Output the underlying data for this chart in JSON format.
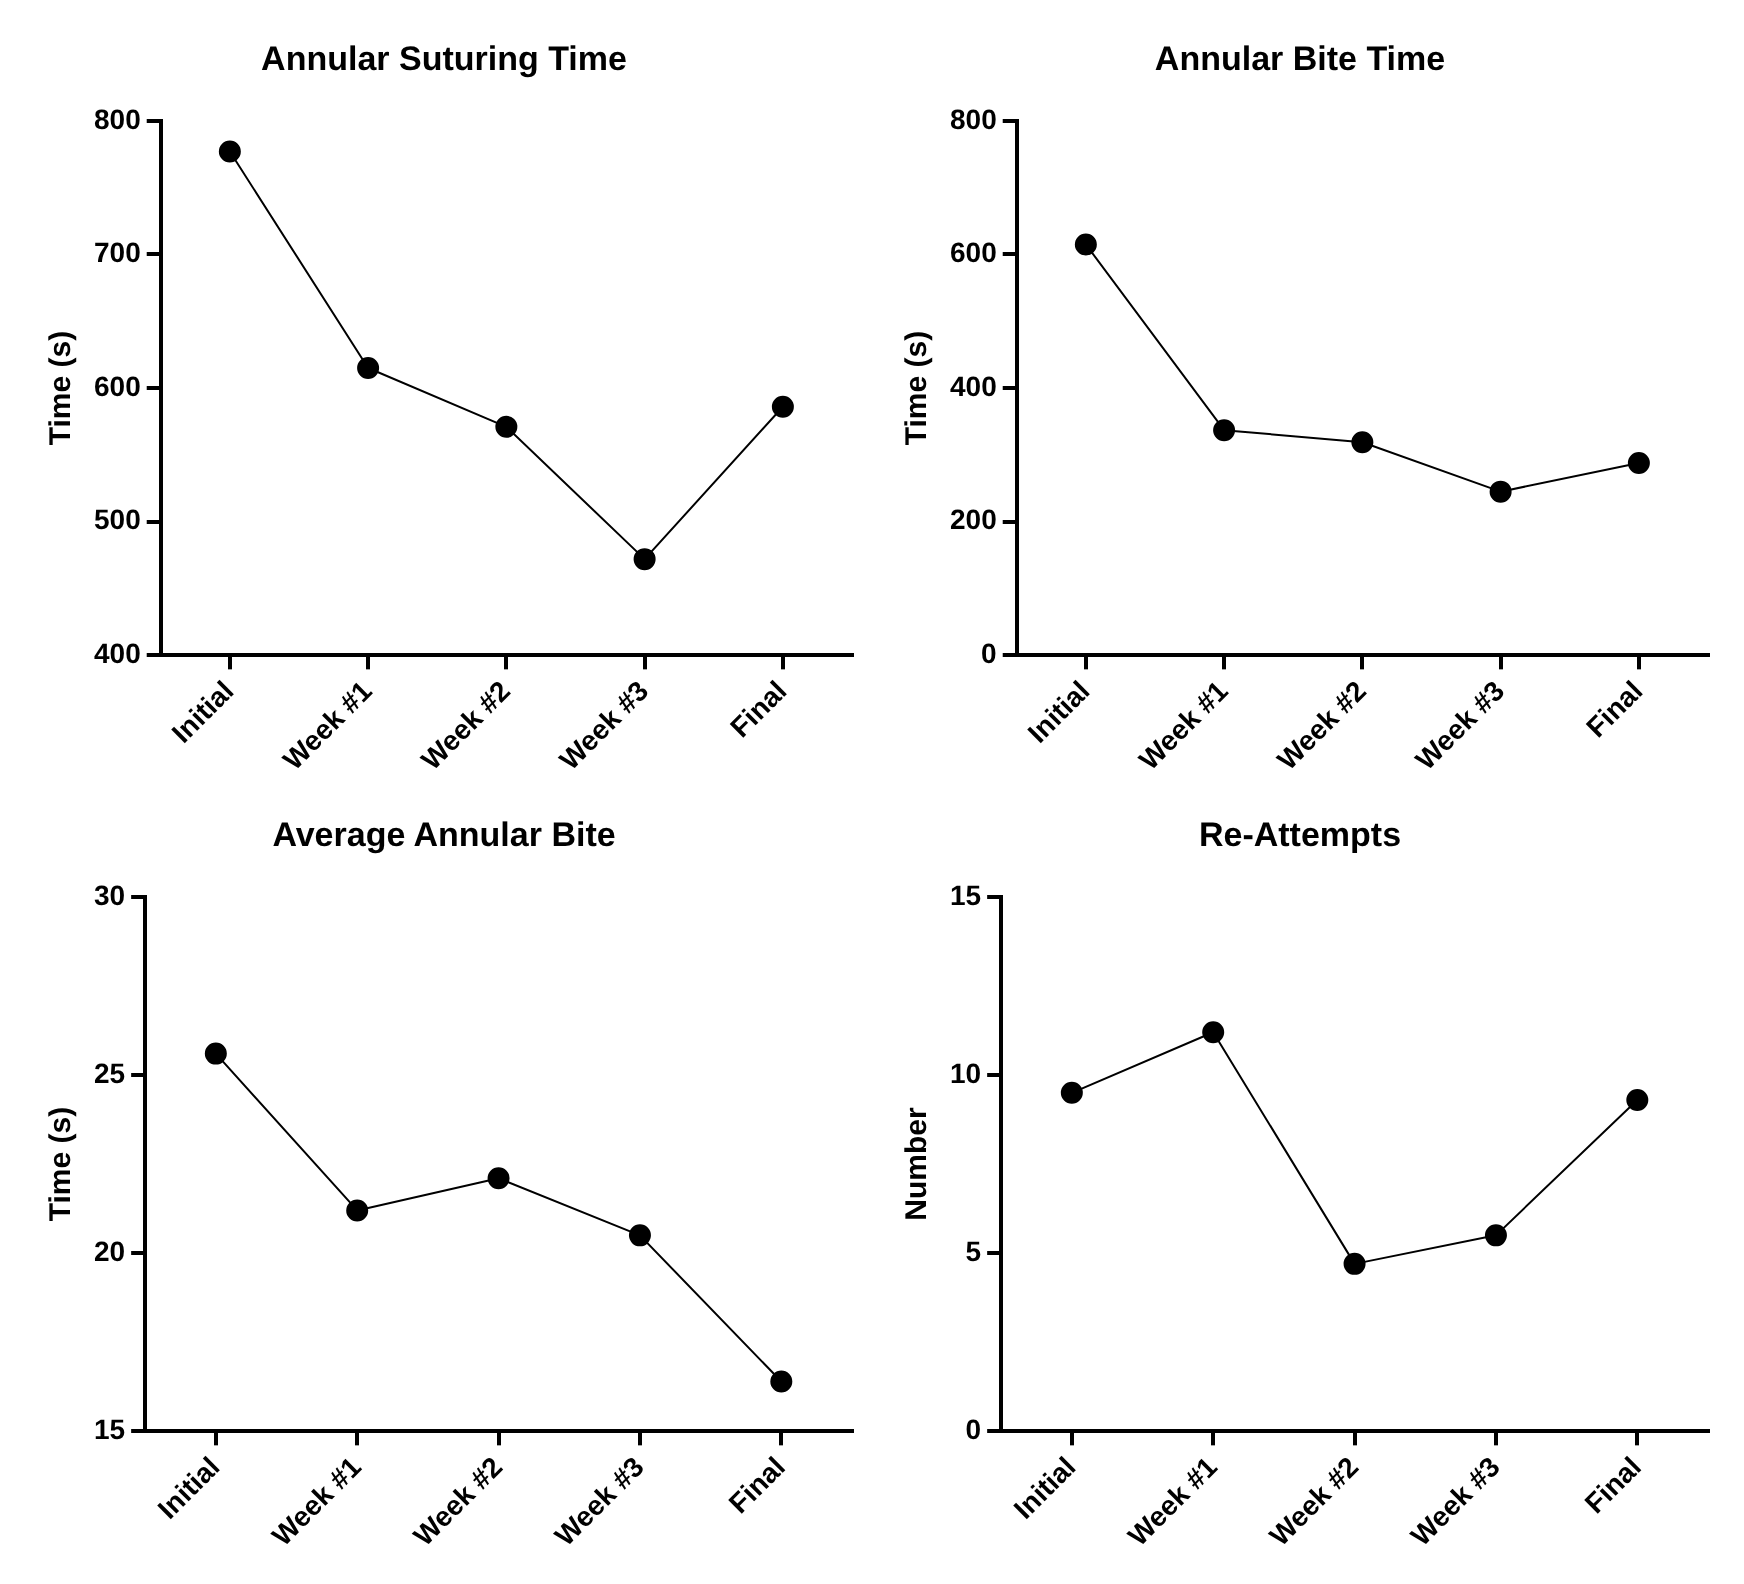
{
  "chart_data": [
    {
      "type": "line",
      "title": "Annular Suturing Time",
      "ylabel": "Time (s)",
      "categories": [
        "Initial",
        "Week #1",
        "Week #2",
        "Week #3",
        "Final"
      ],
      "values": [
        777,
        615,
        571,
        472,
        586
      ],
      "color": "#000000",
      "ylim": [
        400,
        800
      ],
      "yticks": [
        400,
        500,
        600,
        700,
        800
      ],
      "grid": false,
      "legend": false,
      "marker": "circle",
      "line_style": "solid"
    },
    {
      "type": "line",
      "title": "Annular Bite Time",
      "ylabel": "Time (s)",
      "categories": [
        "Initial",
        "Week #1",
        "Week #2",
        "Week #3",
        "Final"
      ],
      "values": [
        615,
        337,
        319,
        245,
        288
      ],
      "color": "#000000",
      "ylim": [
        0,
        800
      ],
      "yticks": [
        0,
        200,
        400,
        600,
        800
      ],
      "grid": false,
      "legend": false,
      "marker": "circle",
      "line_style": "solid"
    },
    {
      "type": "line",
      "title": "Average Annular Bite",
      "ylabel": "Time (s)",
      "categories": [
        "Initial",
        "Week #1",
        "Week #2",
        "Week #3",
        "Final"
      ],
      "values": [
        25.6,
        21.2,
        22.1,
        20.5,
        16.4
      ],
      "color": "#000000",
      "ylim": [
        15,
        30
      ],
      "yticks": [
        15,
        20,
        25,
        30
      ],
      "grid": false,
      "legend": false,
      "marker": "circle",
      "line_style": "solid"
    },
    {
      "type": "line",
      "title": "Re-Attempts",
      "ylabel": "Number",
      "categories": [
        "Initial",
        "Week #1",
        "Week #2",
        "Week #3",
        "Final"
      ],
      "values": [
        9.5,
        11.2,
        4.7,
        5.5,
        9.3
      ],
      "color": "#000000",
      "ylim": [
        0,
        15
      ],
      "yticks": [
        0,
        5,
        10,
        15
      ],
      "grid": false,
      "legend": false,
      "marker": "circle",
      "line_style": "solid"
    }
  ]
}
